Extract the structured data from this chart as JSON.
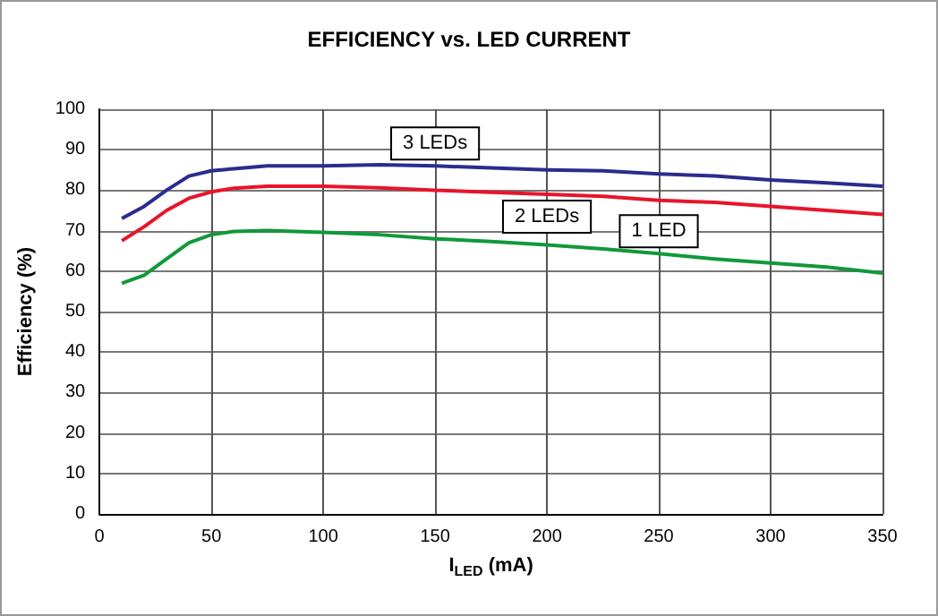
{
  "chart_data": {
    "type": "line",
    "title": "EFFICIENCY vs. LED CURRENT",
    "xlabel": "I$_{LED}$ (mA)",
    "ylabel": "Efficiency (%)",
    "x": [
      10,
      20,
      30,
      40,
      50,
      60,
      75,
      100,
      125,
      150,
      175,
      200,
      225,
      250,
      275,
      300,
      325,
      350
    ],
    "series": [
      {
        "name": "3 LEDs",
        "color": "#2b2b8f",
        "values": [
          73,
          76,
          80,
          83.5,
          84.8,
          85.3,
          86,
          86,
          86.3,
          86,
          85.5,
          85,
          84.8,
          84,
          83.5,
          82.5,
          81.8,
          81
        ]
      },
      {
        "name": "2 LEDs",
        "color": "#e8142c",
        "values": [
          67.5,
          71,
          75,
          78,
          79.6,
          80.5,
          81,
          81,
          80.6,
          80,
          79.5,
          79,
          78.5,
          77.5,
          77,
          76,
          75,
          74
        ]
      },
      {
        "name": "1 LED",
        "color": "#10993c",
        "values": [
          57,
          59,
          63,
          67,
          69,
          69.8,
          70,
          69.6,
          69,
          68,
          67.3,
          66.5,
          65.5,
          64.3,
          63,
          62,
          61,
          59.5
        ]
      }
    ],
    "xlim": [
      0,
      350
    ],
    "xticks": [
      0,
      50,
      100,
      150,
      200,
      250,
      300,
      350
    ],
    "ylim": [
      0,
      100
    ],
    "yticks": [
      0,
      10,
      20,
      30,
      40,
      50,
      60,
      70,
      80,
      90,
      100
    ],
    "grid": true,
    "legend": false,
    "marker": "none",
    "line_style": "solid"
  }
}
